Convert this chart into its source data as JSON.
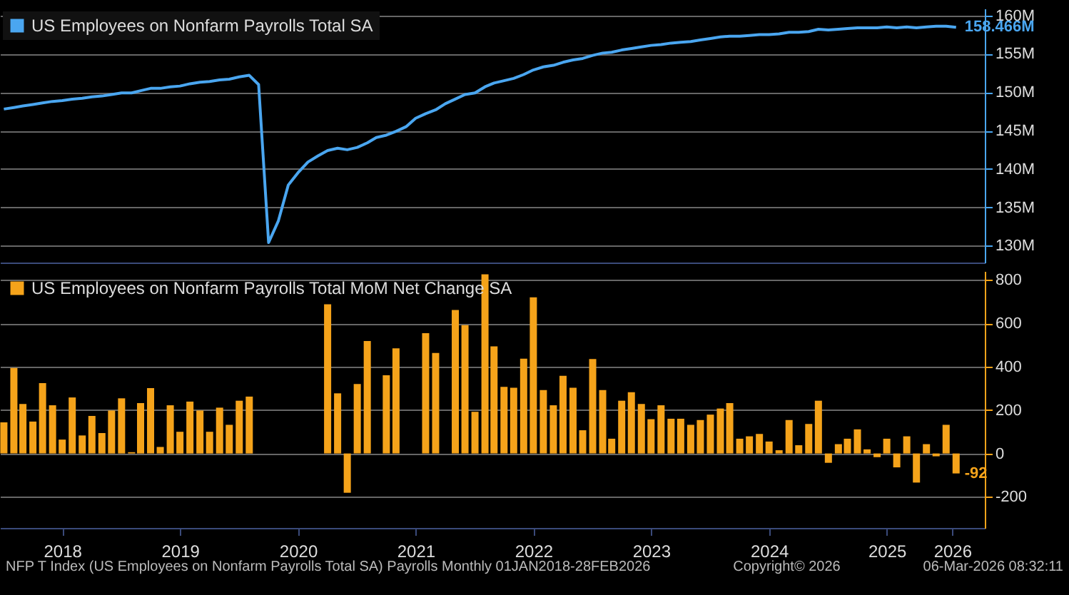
{
  "chart_data": [
    {
      "type": "line",
      "x": [
        "2018-01",
        "2018-02",
        "2018-03",
        "2018-04",
        "2018-05",
        "2018-06",
        "2018-07",
        "2018-08",
        "2018-09",
        "2018-10",
        "2018-11",
        "2018-12",
        "2019-01",
        "2019-02",
        "2019-03",
        "2019-04",
        "2019-05",
        "2019-06",
        "2019-07",
        "2019-08",
        "2019-09",
        "2019-10",
        "2019-11",
        "2019-12",
        "2020-01",
        "2020-02",
        "2020-03",
        "2020-04",
        "2020-05",
        "2020-06",
        "2020-07",
        "2020-08",
        "2020-09",
        "2020-10",
        "2020-11",
        "2020-12",
        "2021-01",
        "2021-02",
        "2021-03",
        "2021-04",
        "2021-05",
        "2021-06",
        "2021-07",
        "2021-08",
        "2021-09",
        "2021-10",
        "2021-11",
        "2021-12",
        "2022-01",
        "2022-02",
        "2022-03",
        "2022-04",
        "2022-05",
        "2022-06",
        "2022-07",
        "2022-08",
        "2022-09",
        "2022-10",
        "2022-11",
        "2022-12",
        "2023-01",
        "2023-02",
        "2023-03",
        "2023-04",
        "2023-05",
        "2023-06",
        "2023-07",
        "2023-08",
        "2023-09",
        "2023-10",
        "2023-11",
        "2023-12",
        "2024-01",
        "2024-02",
        "2024-03",
        "2024-04",
        "2024-05",
        "2024-06",
        "2024-07",
        "2024-08",
        "2024-09",
        "2024-10",
        "2024-11",
        "2024-12",
        "2025-01",
        "2025-02",
        "2025-03",
        "2025-04",
        "2025-05",
        "2025-06",
        "2025-07",
        "2025-08",
        "2025-09",
        "2025-10",
        "2025-11",
        "2025-12",
        "2026-01",
        "2026-02"
      ],
      "series": [
        {
          "name": "US Employees on Nonfarm Payrolls Total SA",
          "color": "#4aa6f0",
          "values": [
            147.8,
            148.0,
            148.2,
            148.4,
            148.6,
            148.8,
            148.9,
            149.1,
            149.2,
            149.4,
            149.5,
            149.7,
            149.9,
            149.9,
            150.2,
            150.5,
            150.5,
            150.7,
            150.8,
            151.1,
            151.3,
            151.4,
            151.6,
            151.7,
            152.0,
            152.2,
            151.0,
            130.4,
            133.2,
            137.9,
            139.5,
            140.9,
            141.7,
            142.4,
            142.7,
            142.5,
            142.8,
            143.4,
            144.1,
            144.4,
            144.9,
            145.5,
            146.6,
            147.2,
            147.7,
            148.5,
            149.1,
            149.7,
            149.9,
            150.7,
            151.2,
            151.5,
            151.8,
            152.3,
            152.9,
            153.3,
            153.5,
            153.9,
            154.2,
            154.4,
            154.8,
            155.1,
            155.2,
            155.5,
            155.7,
            155.9,
            156.1,
            156.2,
            156.4,
            156.5,
            156.6,
            156.8,
            157.0,
            157.2,
            157.3,
            157.3,
            157.4,
            157.5,
            157.5,
            157.6,
            157.8,
            157.8,
            157.9,
            158.2,
            158.1,
            158.2,
            158.3,
            158.4,
            158.4,
            158.4,
            158.5,
            158.4,
            158.5,
            158.4,
            158.5,
            158.6,
            158.6,
            158.466
          ]
        }
      ],
      "xlim": [
        "2017-12-20",
        "2026-05-01"
      ],
      "ylim": [
        127.8,
        160.9
      ],
      "yticks": [
        {
          "value": 130,
          "label": "130M"
        },
        {
          "value": 135,
          "label": "135M"
        },
        {
          "value": 140,
          "label": "140M"
        },
        {
          "value": 145,
          "label": "145M"
        },
        {
          "value": 150,
          "label": "150M"
        },
        {
          "value": 155,
          "label": "155M"
        },
        {
          "value": 160,
          "label": "160M"
        }
      ],
      "tick_labels": "y",
      "grid": "y",
      "legend": "top left",
      "line_style": "solid",
      "annotations": [
        {
          "text": "158.466M",
          "x": "2026-02",
          "y": 158.466
        }
      ]
    },
    {
      "type": "bar",
      "x": [
        "2018-01",
        "2018-02",
        "2018-03",
        "2018-04",
        "2018-05",
        "2018-06",
        "2018-07",
        "2018-08",
        "2018-09",
        "2018-10",
        "2018-11",
        "2018-12",
        "2019-01",
        "2019-02",
        "2019-03",
        "2019-04",
        "2019-05",
        "2019-06",
        "2019-07",
        "2019-08",
        "2019-09",
        "2019-10",
        "2019-11",
        "2019-12",
        "2020-01",
        "2020-02",
        "2020-03",
        "2020-04",
        "2020-05",
        "2020-06",
        "2020-07",
        "2020-08",
        "2020-09",
        "2020-10",
        "2020-11",
        "2020-12",
        "2021-01",
        "2021-02",
        "2021-03",
        "2021-04",
        "2021-05",
        "2021-06",
        "2021-07",
        "2021-08",
        "2021-09",
        "2021-10",
        "2021-11",
        "2021-12",
        "2022-01",
        "2022-02",
        "2022-03",
        "2022-04",
        "2022-05",
        "2022-06",
        "2022-07",
        "2022-08",
        "2022-09",
        "2022-10",
        "2022-11",
        "2022-12",
        "2023-01",
        "2023-02",
        "2023-03",
        "2023-04",
        "2023-05",
        "2023-06",
        "2023-07",
        "2023-08",
        "2023-09",
        "2023-10",
        "2023-11",
        "2023-12",
        "2024-01",
        "2024-02",
        "2024-03",
        "2024-04",
        "2024-05",
        "2024-06",
        "2024-07",
        "2024-08",
        "2024-09",
        "2024-10",
        "2024-11",
        "2024-12",
        "2025-01",
        "2025-02",
        "2025-03",
        "2025-04",
        "2025-05",
        "2025-06",
        "2025-07",
        "2025-08",
        "2025-09",
        "2025-10",
        "2025-11",
        "2025-12",
        "2026-01",
        "2026-02"
      ],
      "series": [
        {
          "name": "US Employees on Nonfarm Payrolls Total MoM Net Change SA",
          "color": "#f5a31a",
          "values": [
            143,
            394,
            228,
            147,
            324,
            222,
            64,
            258,
            83,
            173,
            94,
            198,
            254,
            6,
            232,
            301,
            30,
            222,
            100,
            239,
            198,
            100,
            211,
            132,
            243,
            262,
            null,
            null,
            null,
            null,
            null,
            null,
            null,
            687,
            277,
            -181,
            320,
            518,
            null,
            360,
            484,
            null,
            null,
            554,
            463,
            null,
            661,
            591,
            192,
            825,
            493,
            307,
            303,
            437,
            719,
            292,
            222,
            358,
            303,
            107,
            435,
            292,
            68,
            243,
            282,
            228,
            158,
            222,
            160,
            160,
            132,
            154,
            179,
            207,
            232,
            68,
            79,
            90,
            55,
            15,
            154,
            38,
            136,
            243,
            -43,
            43,
            68,
            111,
            19,
            -17,
            68,
            -64,
            79,
            -134,
            43,
            -13,
            132,
            -92
          ]
        }
      ],
      "xlim": [
        "2017-12-20",
        "2026-05-01"
      ],
      "ylim": [
        -343,
        840
      ],
      "xticks": [
        {
          "value": "2018-07-01",
          "label": "2018"
        },
        {
          "value": "2019-07-01",
          "label": "2019"
        },
        {
          "value": "2020-07-01",
          "label": "2020"
        },
        {
          "value": "2021-07-01",
          "label": "2021"
        },
        {
          "value": "2022-07-01",
          "label": "2022"
        },
        {
          "value": "2023-07-01",
          "label": "2023"
        },
        {
          "value": "2024-07-01",
          "label": "2024"
        },
        {
          "value": "2025-07-01",
          "label": "2025"
        },
        {
          "value": "2026-01-20",
          "label": "2026"
        }
      ],
      "yticks": [
        -200,
        0,
        200,
        400,
        600,
        800
      ],
      "grid": "y",
      "legend": "top left",
      "annotations": [
        {
          "text": "-92",
          "x": "2026-02",
          "y": -92
        },
        "NFP T Index (US Employees on Nonfarm Payrolls Total SA) Payrolls Monthly 01JAN2018-28FEB2026",
        "Copyright© 2026",
        "06-Mar-2026 08:32:11"
      ]
    }
  ]
}
